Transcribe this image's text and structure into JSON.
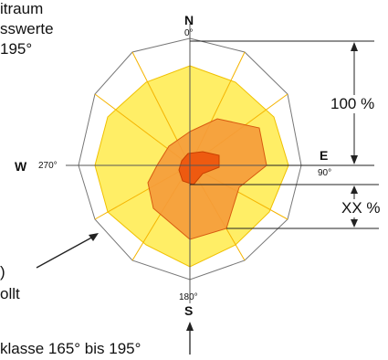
{
  "left_text": {
    "line1": "itraum",
    "line2": "sswerte",
    "line3": "195°",
    "line4": ")",
    "line5": "ollt"
  },
  "compass": {
    "north": "N",
    "north_deg": "0°",
    "east": "E",
    "east_deg": "90°",
    "south": "S",
    "south_deg": "180°",
    "west": "W",
    "west_deg": "270°"
  },
  "measures": {
    "outer": "100 %",
    "inner": "XX %"
  },
  "bottom_caption": "klasse 165° bis 195°",
  "colors": {
    "outer_ring": "#ffffff",
    "yellow_fill": "#ffee66",
    "yellow_stroke": "#f0c000",
    "orange_fill": "#f59a3a",
    "orange_stroke": "#d85a10",
    "red_fill": "#ee5a10"
  }
}
